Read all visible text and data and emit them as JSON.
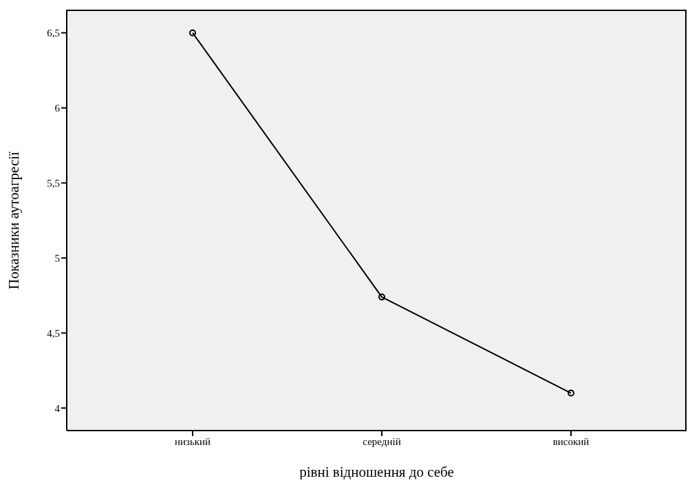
{
  "chart_data": {
    "type": "line",
    "xlabel": "рівні відношення до себе",
    "ylabel": "Показники аутоагресії",
    "categories": [
      "низький",
      "середній",
      "високий"
    ],
    "series": [
      {
        "color": "#000000",
        "values": [
          6.5,
          4.74,
          4.1
        ]
      }
    ],
    "ylim": [
      3.85,
      6.65
    ],
    "yticks": [
      4,
      {
        "value": 4.5,
        "label": "4,5"
      },
      5,
      {
        "value": 5.5,
        "label": "5,5"
      },
      6,
      {
        "value": 6.5,
        "label": "6,5"
      }
    ],
    "marker": "circle",
    "line_style": "solid",
    "grid": false
  }
}
